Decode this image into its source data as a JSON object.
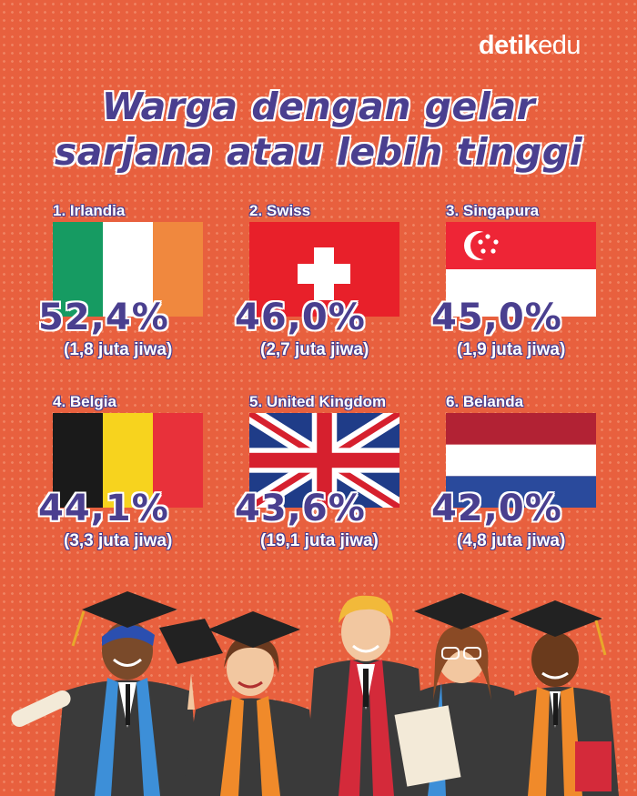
{
  "brand": {
    "bold": "detik",
    "light": "edu"
  },
  "title": {
    "line1": "Warga dengan gelar",
    "line2": "sarjana atau lebih tinggi"
  },
  "countries": [
    {
      "rank_label": "1. Irlandia",
      "percent": "52,4%",
      "population": "(1,8 juta jiwa)",
      "flag": "ireland-flag"
    },
    {
      "rank_label": "2. Swiss",
      "percent": "46,0%",
      "population": "(2,7 juta jiwa)",
      "flag": "switzerland-flag"
    },
    {
      "rank_label": "3. Singapura",
      "percent": "45,0%",
      "population": "(1,9 juta jiwa)",
      "flag": "singapore-flag"
    },
    {
      "rank_label": "4. Belgia",
      "percent": "44,1%",
      "population": "(3,3 juta jiwa)",
      "flag": "belgium-flag"
    },
    {
      "rank_label": "5. United Kingdom",
      "percent": "43,6%",
      "population": "(19,1 juta jiwa)",
      "flag": "uk-flag"
    },
    {
      "rank_label": "6. Belanda",
      "percent": "42,0%",
      "population": "(4,8 juta jiwa)",
      "flag": "netherlands-flag"
    }
  ],
  "colors": {
    "background": "#e8603e",
    "title": "#4a3f8f",
    "accent_text": "#ffffff"
  }
}
